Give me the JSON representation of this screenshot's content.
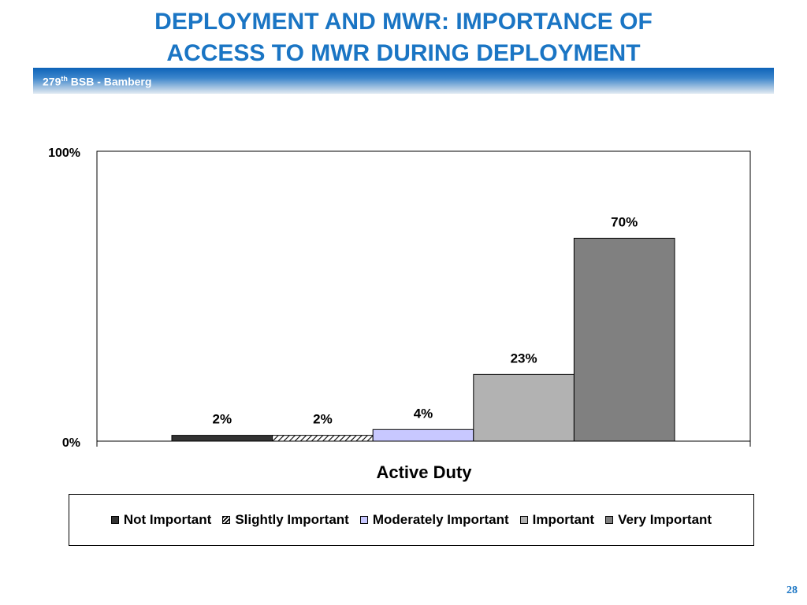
{
  "title_line1": "DEPLOYMENT AND MWR: IMPORTANCE OF",
  "title_line2": "ACCESS TO MWR DURING DEPLOYMENT",
  "banner": {
    "prefix": "279",
    "sup": "th",
    "suffix": " BSB - Bamberg"
  },
  "page_number": "28",
  "chart_data": {
    "type": "bar",
    "categories": [
      "Active Duty"
    ],
    "xlabel": "Active Duty",
    "ylim": [
      0,
      100
    ],
    "y_ticks": [
      "0%",
      "100%"
    ],
    "grid": false,
    "legend_position": "bottom",
    "series": [
      {
        "name": "Not Important",
        "values": [
          2
        ],
        "label": "2%",
        "color": "#333333",
        "pattern": "solid"
      },
      {
        "name": "Slightly Important",
        "values": [
          2
        ],
        "label": "2%",
        "color": "#ffffff",
        "pattern": "hatch"
      },
      {
        "name": "Moderately Important",
        "values": [
          4
        ],
        "label": "4%",
        "color": "#c8c8ff",
        "pattern": "solid"
      },
      {
        "name": "Important",
        "values": [
          23
        ],
        "label": "23%",
        "color": "#b2b2b2",
        "pattern": "solid"
      },
      {
        "name": "Very Important",
        "values": [
          70
        ],
        "label": "70%",
        "color": "#808080",
        "pattern": "solid"
      }
    ]
  }
}
